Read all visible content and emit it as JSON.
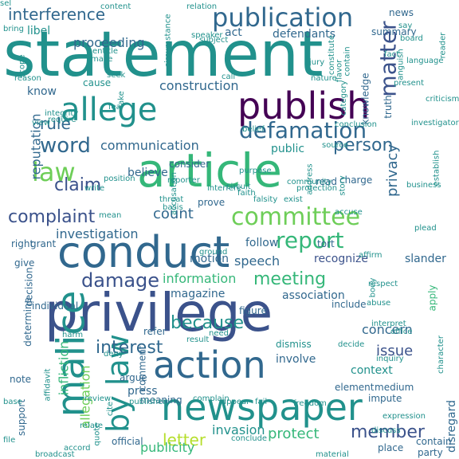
{
  "palette": {
    "purple": "#440154",
    "indigo": "#3b528b",
    "blue": "#31688e",
    "teal": "#21918c",
    "green": "#35b779",
    "lime": "#6ece58",
    "yellow": "#b5de2b",
    "gold": "#fde725"
  },
  "words": [
    {
      "text": "statement",
      "color": "#21918c"
    },
    {
      "text": "article",
      "color": "#35b779"
    },
    {
      "text": "privilege",
      "color": "#3b528b"
    },
    {
      "text": "conduct",
      "color": "#31688e"
    },
    {
      "text": "newspaper",
      "color": "#21918c"
    },
    {
      "text": "publish",
      "color": "#440154"
    },
    {
      "text": "allege",
      "color": "#21918c"
    },
    {
      "text": "publication",
      "color": "#31688e"
    },
    {
      "text": "distress",
      "color": "#3b528b"
    },
    {
      "text": "malice",
      "color": "#21918c"
    },
    {
      "text": "action",
      "color": "#31688e"
    },
    {
      "text": "committee",
      "color": "#6ece58"
    },
    {
      "text": "complaint",
      "color": "#3b528b"
    },
    {
      "text": "defamation",
      "color": "#31688e"
    },
    {
      "text": "report",
      "color": "#35b779"
    },
    {
      "text": "law",
      "color": "#6ece58"
    },
    {
      "text": "word",
      "color": "#31688e"
    },
    {
      "text": "by law",
      "color": "#21918c"
    },
    {
      "text": "matter",
      "color": "#3b528b"
    },
    {
      "text": "interference",
      "color": "#31688e"
    },
    {
      "text": "meeting",
      "color": "#35b779"
    },
    {
      "text": "member",
      "color": "#3b528b"
    },
    {
      "text": "damage",
      "color": "#3b528b"
    },
    {
      "text": "because",
      "color": "#21918c"
    },
    {
      "text": "claim",
      "color": "#3b528b"
    },
    {
      "text": "communication",
      "color": "#31688e"
    },
    {
      "text": "person",
      "color": "#31688e"
    },
    {
      "text": "letter",
      "color": "#b5de2b"
    },
    {
      "text": "information",
      "color": "#35b779"
    },
    {
      "text": "interest",
      "color": "#31688e"
    },
    {
      "text": "rule",
      "color": "#31688e"
    },
    {
      "text": "reputation",
      "color": "#31688e"
    },
    {
      "text": "privacy",
      "color": "#31688e"
    },
    {
      "text": "count",
      "color": "#31688e"
    },
    {
      "text": "allegation",
      "color": "#6ece58"
    },
    {
      "text": "infliction",
      "color": "#35b779"
    },
    {
      "text": "issue",
      "color": "#3b528b"
    },
    {
      "text": "concern",
      "color": "#31688e"
    },
    {
      "text": "investigation",
      "color": "#31688e"
    },
    {
      "text": "protect",
      "color": "#35b779"
    },
    {
      "text": "invasion",
      "color": "#21918c"
    },
    {
      "text": "publicity",
      "color": "#35b779"
    },
    {
      "text": "speech",
      "color": "#31688e"
    },
    {
      "text": "recognize",
      "color": "#3b528b"
    },
    {
      "text": "association",
      "color": "#31688e"
    },
    {
      "text": "magazine",
      "color": "#31688e"
    },
    {
      "text": "motion",
      "color": "#31688e"
    },
    {
      "text": "follow",
      "color": "#31688e"
    },
    {
      "text": "context",
      "color": "#21918c"
    },
    {
      "text": "press",
      "color": "#31688e"
    },
    {
      "text": "argue",
      "color": "#31688e"
    },
    {
      "text": "dismiss",
      "color": "#21918c"
    },
    {
      "text": "involve",
      "color": "#31688e"
    },
    {
      "text": "medium",
      "color": "#31688e"
    },
    {
      "text": "official",
      "color": "#31688e"
    },
    {
      "text": "tort",
      "color": "#31688e"
    },
    {
      "text": "construction",
      "color": "#31688e"
    },
    {
      "text": "proceeding",
      "color": "#31688e"
    },
    {
      "text": "defendants",
      "color": "#31688e"
    },
    {
      "text": "summary",
      "color": "#31688e"
    },
    {
      "text": "libel",
      "color": "#21918c"
    },
    {
      "text": "news",
      "color": "#31688e"
    },
    {
      "text": "act",
      "color": "#31688e"
    },
    {
      "text": "know",
      "color": "#31688e"
    },
    {
      "text": "believe",
      "color": "#31688e"
    },
    {
      "text": "consider",
      "color": "#31688e"
    },
    {
      "text": "prove",
      "color": "#31688e"
    },
    {
      "text": "grant",
      "color": "#31688e"
    },
    {
      "text": "right",
      "color": "#31688e"
    },
    {
      "text": "give",
      "color": "#31688e"
    },
    {
      "text": "decision",
      "color": "#31688e"
    },
    {
      "text": "determine",
      "color": "#31688e"
    },
    {
      "text": "note",
      "color": "#31688e"
    },
    {
      "text": "support",
      "color": "#31688e"
    },
    {
      "text": "meaning",
      "color": "#31688e"
    },
    {
      "text": "comment",
      "color": "#31688e"
    },
    {
      "text": "refer",
      "color": "#31688e"
    },
    {
      "text": "individual",
      "color": "#31688e"
    },
    {
      "text": "figure",
      "color": "#31688e"
    },
    {
      "text": "public",
      "color": "#21918c"
    },
    {
      "text": "charge",
      "color": "#31688e"
    },
    {
      "text": "read",
      "color": "#31688e"
    },
    {
      "text": "knowledge",
      "color": "#31688e"
    },
    {
      "text": "truth",
      "color": "#31688e"
    },
    {
      "text": "slander",
      "color": "#31688e"
    },
    {
      "text": "apply",
      "color": "#35b779"
    },
    {
      "text": "include",
      "color": "#31688e"
    },
    {
      "text": "element",
      "color": "#31688e"
    },
    {
      "text": "impute",
      "color": "#31688e"
    },
    {
      "text": "disregard",
      "color": "#31688e"
    },
    {
      "text": "place",
      "color": "#31688e"
    },
    {
      "text": "contain",
      "color": "#31688e"
    },
    {
      "text": "party",
      "color": "#31688e"
    },
    {
      "text": "result",
      "color": "#21918c"
    },
    {
      "text": "require",
      "color": "#21918c"
    },
    {
      "text": "write",
      "color": "#21918c"
    },
    {
      "text": "cause",
      "color": "#21918c"
    },
    {
      "text": "fear",
      "color": "#21918c"
    },
    {
      "text": "circuit",
      "color": "#21918c"
    },
    {
      "text": "faith",
      "color": "#21918c"
    },
    {
      "text": "take",
      "color": "#21918c"
    },
    {
      "text": "call",
      "color": "#21918c"
    },
    {
      "text": "nature",
      "color": "#21918c"
    },
    {
      "text": "speaker",
      "color": "#21918c"
    },
    {
      "text": "story",
      "color": "#21918c"
    },
    {
      "text": "say",
      "color": "#21918c"
    },
    {
      "text": "board",
      "color": "#21918c"
    },
    {
      "text": "make",
      "color": "#21918c"
    },
    {
      "text": "entitle",
      "color": "#21918c"
    },
    {
      "text": "constitute",
      "color": "#21918c"
    },
    {
      "text": "purpose",
      "color": "#21918c"
    },
    {
      "text": "reporter",
      "color": "#21918c"
    },
    {
      "text": "position",
      "color": "#21918c"
    },
    {
      "text": "integrity",
      "color": "#21918c"
    },
    {
      "text": "address",
      "color": "#21918c"
    },
    {
      "text": "falsity",
      "color": "#21918c"
    },
    {
      "text": "affirm",
      "color": "#21918c"
    },
    {
      "text": "respect",
      "color": "#21918c"
    },
    {
      "text": "abuse",
      "color": "#21918c"
    },
    {
      "text": "interpret",
      "color": "#21918c"
    },
    {
      "text": "office",
      "color": "#21918c"
    },
    {
      "text": "decide",
      "color": "#21918c"
    },
    {
      "text": "body",
      "color": "#21918c"
    },
    {
      "text": "plead",
      "color": "#21918c"
    },
    {
      "text": "establish",
      "color": "#21918c"
    },
    {
      "text": "character",
      "color": "#21918c"
    },
    {
      "text": "inquiry",
      "color": "#21918c"
    },
    {
      "text": "discuss",
      "color": "#21918c"
    },
    {
      "text": "expression",
      "color": "#21918c"
    },
    {
      "text": "freedom",
      "color": "#21918c"
    },
    {
      "text": "conclude",
      "color": "#21918c"
    },
    {
      "text": "appear",
      "color": "#21918c"
    },
    {
      "text": "fail",
      "color": "#21918c"
    },
    {
      "text": "deny",
      "color": "#21918c"
    },
    {
      "text": "harm",
      "color": "#21918c"
    },
    {
      "text": "base",
      "color": "#21918c"
    },
    {
      "text": "cite",
      "color": "#21918c"
    },
    {
      "text": "relate",
      "color": "#21918c"
    },
    {
      "text": "quote",
      "color": "#21918c"
    },
    {
      "text": "broadcast",
      "color": "#21918c"
    },
    {
      "text": "affidavit",
      "color": "#21918c"
    },
    {
      "text": "review",
      "color": "#21918c"
    },
    {
      "text": "publisher",
      "color": "#21918c"
    },
    {
      "text": "threat",
      "color": "#21918c"
    },
    {
      "text": "basis",
      "color": "#21918c"
    },
    {
      "text": "mean",
      "color": "#21918c"
    },
    {
      "text": "accusation",
      "color": "#21918c"
    },
    {
      "text": "exist",
      "color": "#21918c"
    },
    {
      "text": "source",
      "color": "#21918c"
    },
    {
      "text": "belief",
      "color": "#21918c"
    },
    {
      "text": "view",
      "color": "#21918c"
    },
    {
      "text": "reason",
      "color": "#21918c"
    },
    {
      "text": "fact",
      "color": "#21918c"
    },
    {
      "text": "bring",
      "color": "#21918c"
    },
    {
      "text": "scope",
      "color": "#21918c"
    },
    {
      "text": "investigator",
      "color": "#21918c"
    },
    {
      "text": "criticism",
      "color": "#21918c"
    },
    {
      "text": "flavor",
      "color": "#21918c"
    },
    {
      "text": "contain",
      "color": "#21918c"
    },
    {
      "text": "language",
      "color": "#21918c"
    },
    {
      "text": "reader",
      "color": "#21918c"
    },
    {
      "text": "anguish",
      "color": "#21918c"
    },
    {
      "text": "category",
      "color": "#21918c"
    },
    {
      "text": "present",
      "color": "#21918c"
    },
    {
      "text": "conclusion",
      "color": "#21918c"
    },
    {
      "text": "protection",
      "color": "#21918c"
    },
    {
      "text": "community",
      "color": "#21918c"
    },
    {
      "text": "business",
      "color": "#21918c"
    },
    {
      "text": "interfere",
      "color": "#21918c"
    },
    {
      "text": "accuse",
      "color": "#21918c"
    },
    {
      "text": "need",
      "color": "#21918c"
    },
    {
      "text": "complain",
      "color": "#21918c"
    },
    {
      "text": "ground",
      "color": "#21918c"
    },
    {
      "text": "file",
      "color": "#21918c"
    },
    {
      "text": "accord",
      "color": "#21918c"
    },
    {
      "text": "material",
      "color": "#21918c"
    },
    {
      "text": "content",
      "color": "#21918c"
    },
    {
      "text": "relation",
      "color": "#21918c"
    },
    {
      "text": "circumstance",
      "color": "#21918c"
    },
    {
      "text": "subject",
      "color": "#21918c"
    },
    {
      "text": "jury",
      "color": "#21918c"
    },
    {
      "text": "seek",
      "color": "#21918c"
    },
    {
      "text": "sel",
      "color": "#21918c"
    }
  ]
}
